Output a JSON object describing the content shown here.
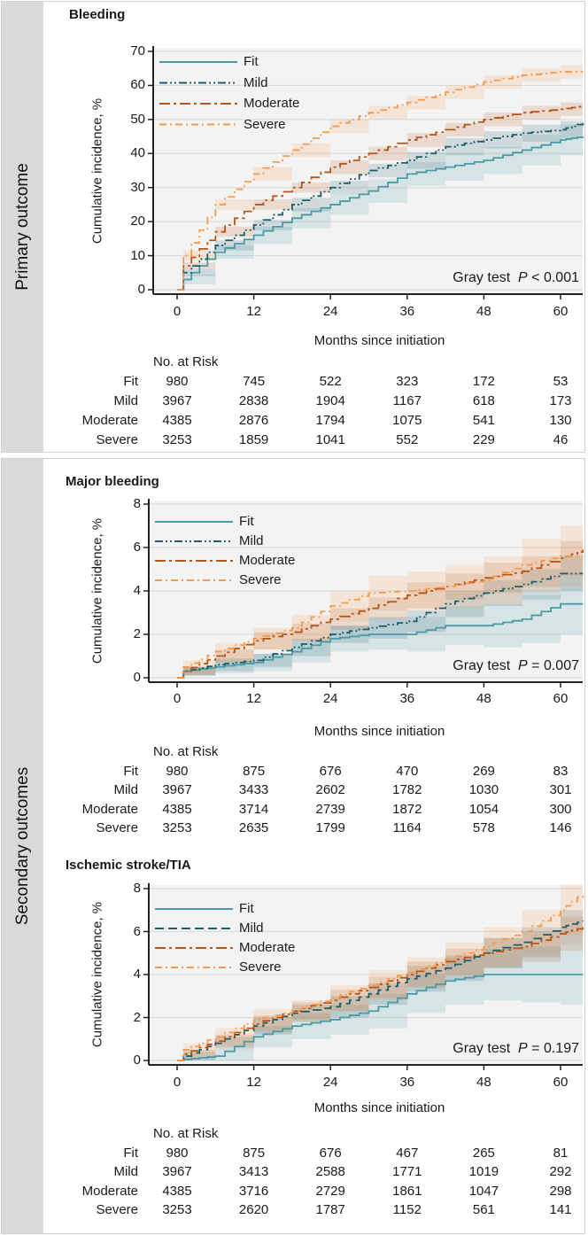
{
  "sections": {
    "primary": "Primary outcome",
    "secondary": "Secondary outcomes"
  },
  "colors": {
    "Fit": "#4b9ba6",
    "Mild": "#1d5e6a",
    "Moderate": "#b5561b",
    "Severe": "#f39a4e",
    "plot_bg": "#f3f3f3"
  },
  "chart_data": [
    {
      "type": "line",
      "title": "Bleeding",
      "xlabel": "Months since initiation",
      "ylabel": "Cumulative incidence, %",
      "xlim": [
        0,
        63.5
      ],
      "ylim": [
        0,
        70
      ],
      "xticks": [
        0,
        12,
        24,
        36,
        48,
        60
      ],
      "yticks": [
        0,
        10,
        20,
        30,
        40,
        50,
        60,
        70
      ],
      "grid": true,
      "legend": "top-left",
      "annotation": {
        "prefix": "Gray test",
        "p": "P",
        "value": " < 0.001"
      },
      "x": [
        0,
        1,
        6,
        12,
        18,
        24,
        30,
        36,
        42,
        48,
        54,
        60,
        63.5
      ],
      "series": [
        {
          "name": "Fit",
          "style": "solid",
          "values": [
            0,
            3,
            11,
            16,
            21,
            25,
            29,
            34,
            36,
            38,
            41,
            44,
            45
          ],
          "ci_halfwidth": [
            0,
            1.5,
            2,
            2.5,
            3,
            3,
            3.5,
            3.5,
            4,
            4,
            4.5,
            4.5,
            4.5
          ]
        },
        {
          "name": "Mild",
          "style": "dash-dot-dot",
          "values": [
            0,
            5,
            13,
            19,
            25,
            30,
            35,
            38,
            42,
            44,
            46,
            47,
            49
          ],
          "ci_halfwidth": [
            0,
            1,
            1.5,
            1.5,
            2,
            2,
            2,
            2.5,
            2.5,
            2.5,
            2.5,
            2.5,
            2.5
          ]
        },
        {
          "name": "Moderate",
          "style": "long-dash-dot",
          "values": [
            0,
            7,
            17,
            25,
            30,
            36,
            40,
            44,
            47,
            50,
            52,
            53,
            54
          ],
          "ci_halfwidth": [
            0,
            1,
            1.5,
            1.5,
            1.5,
            2,
            2,
            2,
            2,
            2,
            2,
            2,
            2.5
          ]
        },
        {
          "name": "Severe",
          "style": "dash-dot",
          "values": [
            0,
            10,
            25,
            34,
            41,
            48,
            52,
            55,
            58,
            61,
            63,
            64,
            64
          ],
          "ci_halfwidth": [
            0,
            1.5,
            1.5,
            2,
            2,
            2,
            2,
            2,
            2,
            2,
            2,
            2,
            2
          ]
        }
      ],
      "risk_table": {
        "header": "No. at Risk",
        "rows": [
          {
            "label": "Fit",
            "values": [
              "980",
              "745",
              "522",
              "323",
              "172",
              "53"
            ]
          },
          {
            "label": "Mild",
            "values": [
              "3967",
              "2838",
              "1904",
              "1167",
              "618",
              "173"
            ]
          },
          {
            "label": "Moderate",
            "values": [
              "4385",
              "2876",
              "1794",
              "1075",
              "541",
              "130"
            ]
          },
          {
            "label": "Severe",
            "values": [
              "3253",
              "1859",
              "1041",
              "552",
              "229",
              "46"
            ]
          }
        ]
      }
    },
    {
      "type": "line",
      "title": "Major bleeding",
      "xlabel": "Months since initiation",
      "ylabel": "Cumulative incidence, %",
      "xlim": [
        0,
        63.5
      ],
      "ylim": [
        0,
        8
      ],
      "xticks": [
        0,
        12,
        24,
        36,
        48,
        60
      ],
      "yticks": [
        0,
        2,
        4,
        6,
        8
      ],
      "grid": true,
      "legend": "top-left",
      "annotation": {
        "prefix": "Gray test",
        "p": "P",
        "value": " = 0.007"
      },
      "x": [
        0,
        1,
        6,
        12,
        18,
        24,
        30,
        36,
        42,
        48,
        54,
        60,
        63.5
      ],
      "series": [
        {
          "name": "Fit",
          "style": "solid",
          "values": [
            0,
            0.3,
            0.5,
            0.7,
            1.2,
            1.8,
            2.0,
            2.0,
            2.4,
            2.4,
            2.7,
            3.4,
            3.4
          ],
          "ci_halfwidth": [
            0,
            0.2,
            0.3,
            0.4,
            0.5,
            0.6,
            0.7,
            0.8,
            0.9,
            1.0,
            1.1,
            1.4,
            1.4
          ]
        },
        {
          "name": "Mild",
          "style": "dash-dot-dot",
          "values": [
            0,
            0.3,
            0.6,
            0.8,
            1.4,
            2.0,
            2.3,
            2.6,
            3.4,
            3.9,
            4.3,
            4.8,
            4.8
          ],
          "ci_halfwidth": [
            0,
            0.2,
            0.3,
            0.3,
            0.4,
            0.4,
            0.5,
            0.5,
            0.6,
            0.6,
            0.7,
            0.8,
            0.8
          ]
        },
        {
          "name": "Moderate",
          "style": "long-dash-dot",
          "values": [
            0,
            0.3,
            1.0,
            1.7,
            2.1,
            2.7,
            3.2,
            3.8,
            4.2,
            4.6,
            4.9,
            5.5,
            5.9
          ],
          "ci_halfwidth": [
            0,
            0.2,
            0.3,
            0.4,
            0.4,
            0.5,
            0.5,
            0.6,
            0.6,
            0.7,
            0.7,
            0.8,
            0.9
          ]
        },
        {
          "name": "Severe",
          "style": "dash-dot",
          "values": [
            0,
            0.5,
            1.2,
            1.8,
            2.3,
            3.3,
            3.9,
            4.0,
            4.2,
            4.5,
            5.2,
            5.6,
            5.6
          ],
          "ci_halfwidth": [
            0,
            0.3,
            0.4,
            0.5,
            0.6,
            0.7,
            0.8,
            0.9,
            1.0,
            1.1,
            1.2,
            1.4,
            1.5
          ]
        }
      ],
      "risk_table": {
        "header": "No. at Risk",
        "rows": [
          {
            "label": "Fit",
            "values": [
              "980",
              "875",
              "676",
              "470",
              "269",
              "83"
            ]
          },
          {
            "label": "Mild",
            "values": [
              "3967",
              "3433",
              "2602",
              "1782",
              "1030",
              "301"
            ]
          },
          {
            "label": "Moderate",
            "values": [
              "4385",
              "3714",
              "2739",
              "1872",
              "1054",
              "300"
            ]
          },
          {
            "label": "Severe",
            "values": [
              "3253",
              "2635",
              "1799",
              "1164",
              "578",
              "146"
            ]
          }
        ]
      }
    },
    {
      "type": "line",
      "title": "Ischemic stroke/TIA",
      "xlabel": "Months since initiation",
      "ylabel": "Cumulative incidence, %",
      "xlim": [
        0,
        63.5
      ],
      "ylim": [
        0,
        8
      ],
      "xticks": [
        0,
        12,
        24,
        36,
        48,
        60
      ],
      "yticks": [
        0,
        2,
        4,
        6,
        8
      ],
      "grid": true,
      "legend": "top-left",
      "annotation": {
        "prefix": "Gray test",
        "p": "P",
        "value": " = 0.197"
      },
      "x": [
        0,
        1,
        6,
        12,
        18,
        24,
        30,
        36,
        42,
        48,
        54,
        60,
        63.5
      ],
      "series": [
        {
          "name": "Fit",
          "style": "solid",
          "values": [
            0,
            0.05,
            0.2,
            1.1,
            1.6,
            1.9,
            2.3,
            3.1,
            3.7,
            4.0,
            4.0,
            4.0,
            4.0
          ],
          "ci_halfwidth": [
            0,
            0.1,
            0.3,
            0.5,
            0.6,
            0.7,
            0.8,
            0.9,
            1.1,
            1.2,
            1.3,
            1.4,
            1.4
          ]
        },
        {
          "name": "Mild",
          "style": "dash",
          "values": [
            0,
            0.2,
            0.8,
            1.6,
            2.2,
            2.5,
            3.1,
            3.8,
            4.3,
            5.0,
            5.5,
            6.2,
            6.5
          ],
          "ci_halfwidth": [
            0,
            0.2,
            0.3,
            0.4,
            0.4,
            0.5,
            0.5,
            0.6,
            0.6,
            0.7,
            0.7,
            0.8,
            0.9
          ]
        },
        {
          "name": "Moderate",
          "style": "long-dash-dot",
          "values": [
            0,
            0.3,
            0.9,
            1.7,
            2.3,
            2.8,
            3.4,
            4.0,
            4.6,
            5.0,
            5.3,
            5.9,
            6.2
          ],
          "ci_halfwidth": [
            0,
            0.2,
            0.3,
            0.4,
            0.4,
            0.5,
            0.5,
            0.6,
            0.6,
            0.7,
            0.7,
            0.8,
            0.9
          ]
        },
        {
          "name": "Severe",
          "style": "dash-dot",
          "values": [
            0,
            0.5,
            1.1,
            1.9,
            2.3,
            2.9,
            3.5,
            4.1,
            4.7,
            5.3,
            6.0,
            7.0,
            7.8
          ],
          "ci_halfwidth": [
            0,
            0.3,
            0.4,
            0.5,
            0.5,
            0.6,
            0.7,
            0.7,
            0.8,
            0.9,
            1.0,
            1.2,
            1.4
          ]
        }
      ],
      "risk_table": {
        "header": "No. at Risk",
        "rows": [
          {
            "label": "Fit",
            "values": [
              "980",
              "875",
              "676",
              "467",
              "265",
              "81"
            ]
          },
          {
            "label": "Mild",
            "values": [
              "3967",
              "3413",
              "2588",
              "1771",
              "1019",
              "292"
            ]
          },
          {
            "label": "Moderate",
            "values": [
              "4385",
              "3716",
              "2729",
              "1861",
              "1047",
              "298"
            ]
          },
          {
            "label": "Severe",
            "values": [
              "3253",
              "2620",
              "1787",
              "1152",
              "561",
              "141"
            ]
          }
        ]
      }
    }
  ]
}
